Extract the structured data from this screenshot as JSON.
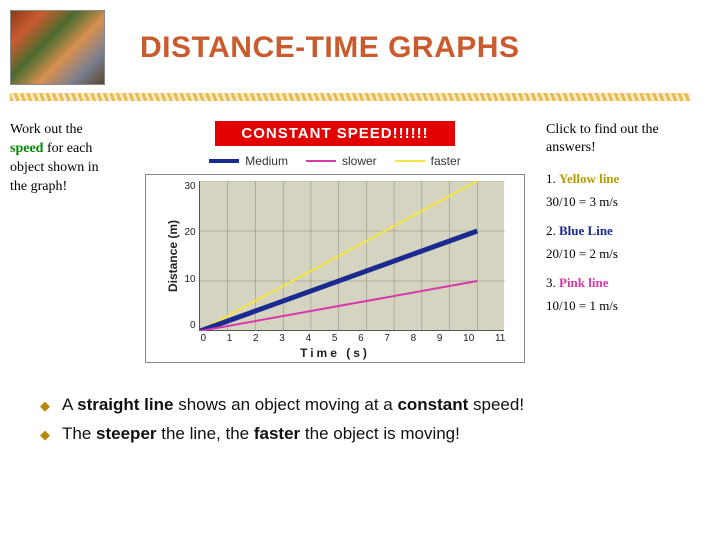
{
  "title": {
    "text": "DISTANCE-TIME GRAPHS",
    "color": "#c95b2e"
  },
  "underline_color": "#e6b43c",
  "left_note": {
    "l1": "Work out the",
    "l2a": "speed",
    "l2b": " for each",
    "l3": "object shown in",
    "l4": "the graph!"
  },
  "chart": {
    "banner": {
      "text": "CONSTANT SPEED!!!!!!",
      "bg": "#e20000",
      "fg": "#ffffff"
    },
    "background": "#d4d4c0",
    "grid_color": "#8a8a7a",
    "legend": [
      {
        "label": "Medium",
        "color": "#1a2a90",
        "width": 4
      },
      {
        "label": "slower",
        "color": "#d63aa8",
        "width": 2
      },
      {
        "label": "faster",
        "color": "#f5e542",
        "width": 2
      }
    ],
    "ylabel": "Distance (m)",
    "xlabel": "Time (s)",
    "xticks": [
      "0",
      "1",
      "2",
      "3",
      "4",
      "5",
      "6",
      "7",
      "8",
      "9",
      "10",
      "11"
    ],
    "yticks": [
      "30",
      "20",
      "10",
      "0"
    ],
    "xlim": [
      0,
      11
    ],
    "ylim": [
      0,
      30
    ],
    "series": [
      {
        "name": "faster",
        "color": "#f5e542",
        "width": 2,
        "points": [
          [
            0,
            0
          ],
          [
            10,
            30
          ]
        ]
      },
      {
        "name": "medium",
        "color": "#1a2a90",
        "width": 5,
        "points": [
          [
            0,
            0
          ],
          [
            10,
            20
          ]
        ]
      },
      {
        "name": "slower",
        "color": "#d63aa8",
        "width": 2,
        "points": [
          [
            0,
            0
          ],
          [
            10,
            10
          ]
        ]
      }
    ]
  },
  "answers": {
    "click": "Click to find out the answers!",
    "items": [
      {
        "num": "1. ",
        "label": "Yellow line",
        "label_color": "#b59c00",
        "calc": "30/10 = 3 m/s"
      },
      {
        "num": "2. ",
        "label": "Blue Line",
        "label_color": "#1a2a90",
        "calc": "20/10 = 2 m/s"
      },
      {
        "num": "3. ",
        "label": "Pink line",
        "label_color": "#d63aa8",
        "calc": "10/10 = 1 m/s"
      }
    ]
  },
  "bullets": {
    "b1_a": "A ",
    "b1_b": "straight line",
    "b1_c": " shows an object moving at a ",
    "b1_d": "constant",
    "b1_e": " speed!",
    "b2_a": "The ",
    "b2_b": "steeper",
    "b2_c": " the line, the ",
    "b2_d": "faster",
    "b2_e": " the object is moving!"
  }
}
